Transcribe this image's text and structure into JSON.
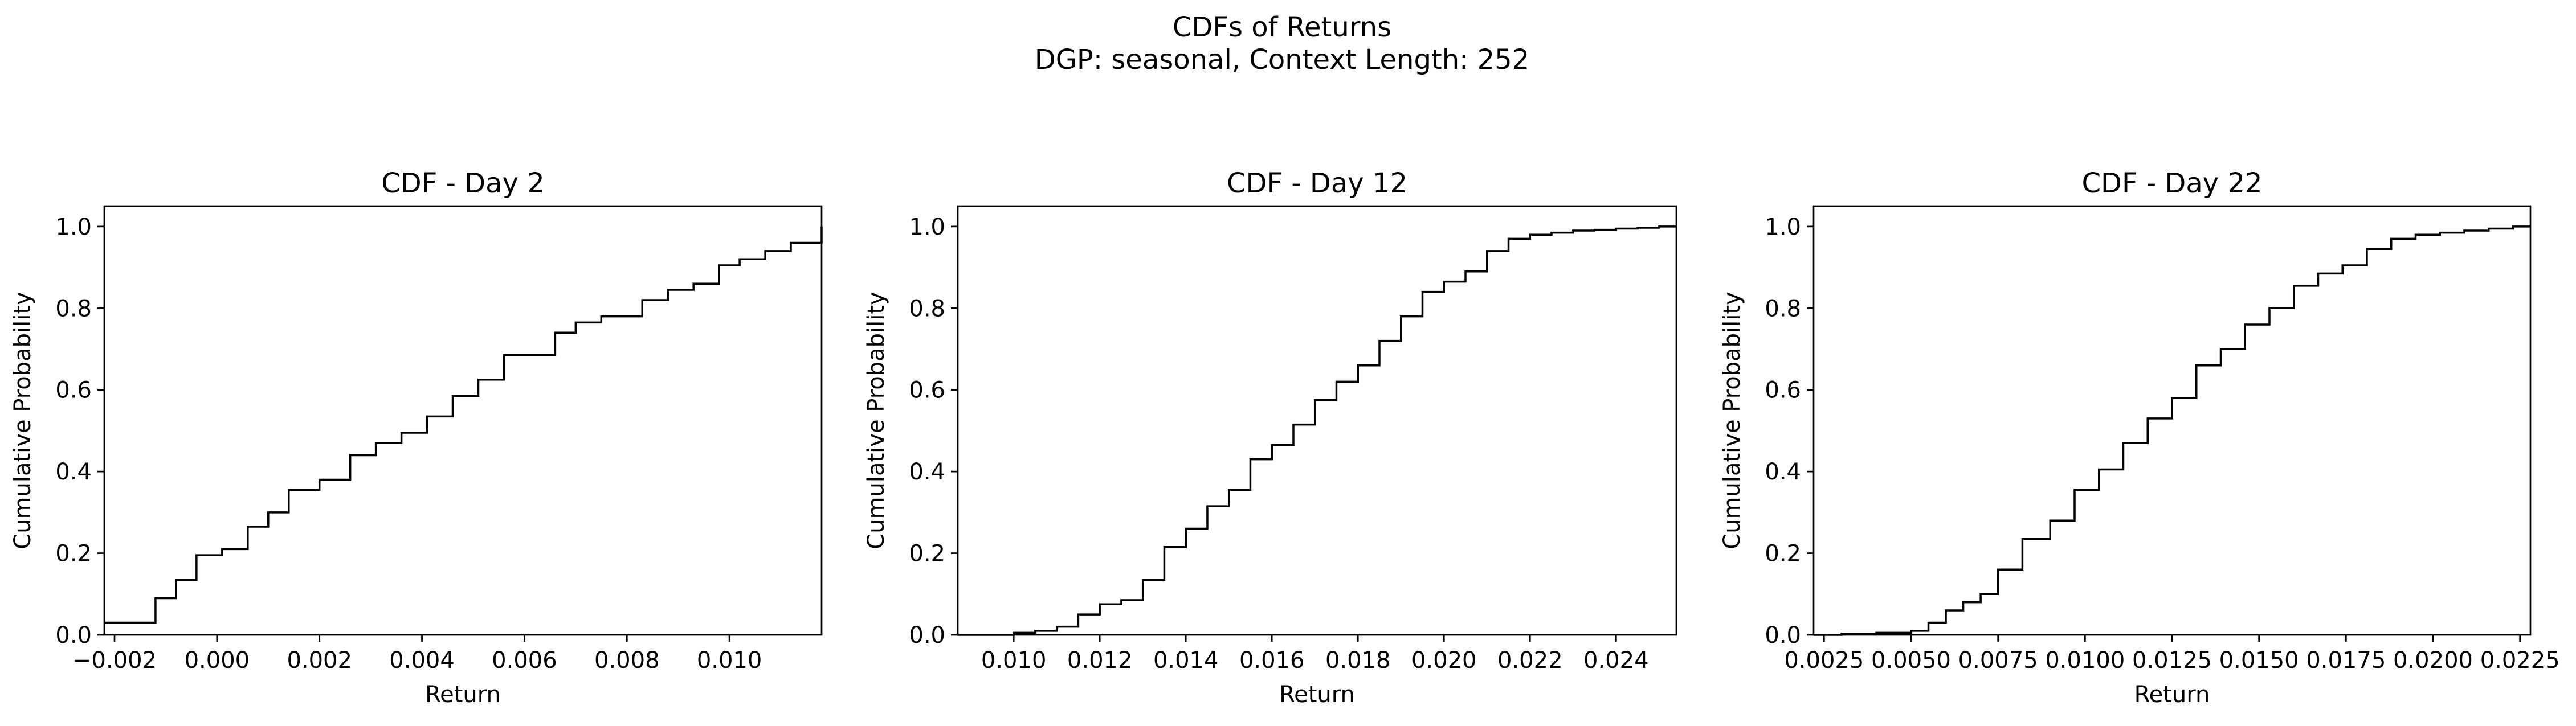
{
  "figure": {
    "title_line1": "CDFs of Returns",
    "title_line2": "DGP: seasonal, Context Length: 252"
  },
  "chart_data": [
    {
      "type": "line",
      "step": true,
      "title": "CDF - Day 2",
      "xlabel": "Return",
      "ylabel": "Cumulative Probability",
      "xlim": [
        -0.0022,
        0.0118
      ],
      "ylim": [
        0,
        1.05
      ],
      "xticks": [
        -0.002,
        0.0,
        0.002,
        0.004,
        0.006,
        0.008,
        0.01
      ],
      "xtick_labels": [
        "−0.002",
        "0.000",
        "0.002",
        "0.004",
        "0.006",
        "0.008",
        "0.010"
      ],
      "yticks": [
        0.0,
        0.2,
        0.4,
        0.6,
        0.8,
        1.0
      ],
      "ytick_labels": [
        "0.0",
        "0.2",
        "0.4",
        "0.6",
        "0.8",
        "1.0"
      ],
      "grid": false,
      "series": [
        {
          "color": "#000000",
          "x": [
            -0.0022,
            -0.0012,
            -0.0008,
            -0.0004,
            0.0001,
            0.0006,
            0.001,
            0.0014,
            0.002,
            0.0026,
            0.0031,
            0.0036,
            0.0041,
            0.0046,
            0.0051,
            0.0056,
            0.0066,
            0.007,
            0.0075,
            0.0083,
            0.0088,
            0.0093,
            0.0098,
            0.0102,
            0.0107,
            0.0112,
            0.0118
          ],
          "y": [
            0.03,
            0.09,
            0.135,
            0.195,
            0.21,
            0.265,
            0.3,
            0.355,
            0.38,
            0.44,
            0.47,
            0.495,
            0.535,
            0.585,
            0.625,
            0.685,
            0.74,
            0.765,
            0.78,
            0.82,
            0.845,
            0.86,
            0.905,
            0.92,
            0.94,
            0.96,
            1.0
          ]
        }
      ]
    },
    {
      "type": "line",
      "step": true,
      "title": "CDF - Day 12",
      "xlabel": "Return",
      "ylabel": "Cumulative Probability",
      "xlim": [
        0.0087,
        0.0254
      ],
      "ylim": [
        0,
        1.05
      ],
      "xticks": [
        0.01,
        0.012,
        0.014,
        0.016,
        0.018,
        0.02,
        0.022,
        0.024
      ],
      "xtick_labels": [
        "0.010",
        "0.012",
        "0.014",
        "0.016",
        "0.018",
        "0.020",
        "0.022",
        "0.024"
      ],
      "yticks": [
        0.0,
        0.2,
        0.4,
        0.6,
        0.8,
        1.0
      ],
      "ytick_labels": [
        "0.0",
        "0.2",
        "0.4",
        "0.6",
        "0.8",
        "1.0"
      ],
      "grid": false,
      "series": [
        {
          "color": "#000000",
          "x": [
            0.0087,
            0.01,
            0.0105,
            0.011,
            0.0115,
            0.012,
            0.0125,
            0.013,
            0.0135,
            0.014,
            0.0145,
            0.015,
            0.0155,
            0.016,
            0.0165,
            0.017,
            0.0175,
            0.018,
            0.0185,
            0.019,
            0.0195,
            0.02,
            0.0205,
            0.021,
            0.0215,
            0.022,
            0.0225,
            0.023,
            0.0235,
            0.024,
            0.0245,
            0.025,
            0.0254
          ],
          "y": [
            0.0,
            0.005,
            0.01,
            0.02,
            0.05,
            0.075,
            0.085,
            0.135,
            0.215,
            0.26,
            0.315,
            0.355,
            0.43,
            0.465,
            0.515,
            0.575,
            0.62,
            0.66,
            0.72,
            0.78,
            0.84,
            0.865,
            0.89,
            0.94,
            0.97,
            0.98,
            0.985,
            0.99,
            0.992,
            0.995,
            0.997,
            1.0,
            1.0
          ]
        }
      ]
    },
    {
      "type": "line",
      "step": true,
      "title": "CDF - Day 22",
      "xlabel": "Return",
      "ylabel": "Cumulative Probability",
      "xlim": [
        0.0022,
        0.0228
      ],
      "ylim": [
        0,
        1.05
      ],
      "xticks": [
        0.0025,
        0.005,
        0.0075,
        0.01,
        0.0125,
        0.015,
        0.0175,
        0.02,
        0.0225
      ],
      "xtick_labels": [
        "0.0025",
        "0.0050",
        "0.0075",
        "0.0100",
        "0.0125",
        "0.0150",
        "0.0175",
        "0.0200",
        "0.0225"
      ],
      "yticks": [
        0.0,
        0.2,
        0.4,
        0.6,
        0.8,
        1.0
      ],
      "ytick_labels": [
        "0.0",
        "0.2",
        "0.4",
        "0.6",
        "0.8",
        "1.0"
      ],
      "grid": false,
      "series": [
        {
          "color": "#000000",
          "x": [
            0.0022,
            0.003,
            0.004,
            0.005,
            0.0055,
            0.006,
            0.0065,
            0.007,
            0.0075,
            0.0082,
            0.009,
            0.0097,
            0.0104,
            0.0111,
            0.0118,
            0.0125,
            0.0132,
            0.0139,
            0.0146,
            0.0153,
            0.016,
            0.0167,
            0.0174,
            0.0181,
            0.0188,
            0.0195,
            0.0202,
            0.0209,
            0.0216,
            0.0223,
            0.0228
          ],
          "y": [
            0.0,
            0.003,
            0.005,
            0.01,
            0.03,
            0.06,
            0.08,
            0.1,
            0.16,
            0.235,
            0.28,
            0.355,
            0.405,
            0.47,
            0.53,
            0.58,
            0.66,
            0.7,
            0.76,
            0.8,
            0.855,
            0.885,
            0.905,
            0.945,
            0.97,
            0.98,
            0.985,
            0.99,
            0.995,
            1.0,
            1.0
          ]
        }
      ]
    }
  ]
}
